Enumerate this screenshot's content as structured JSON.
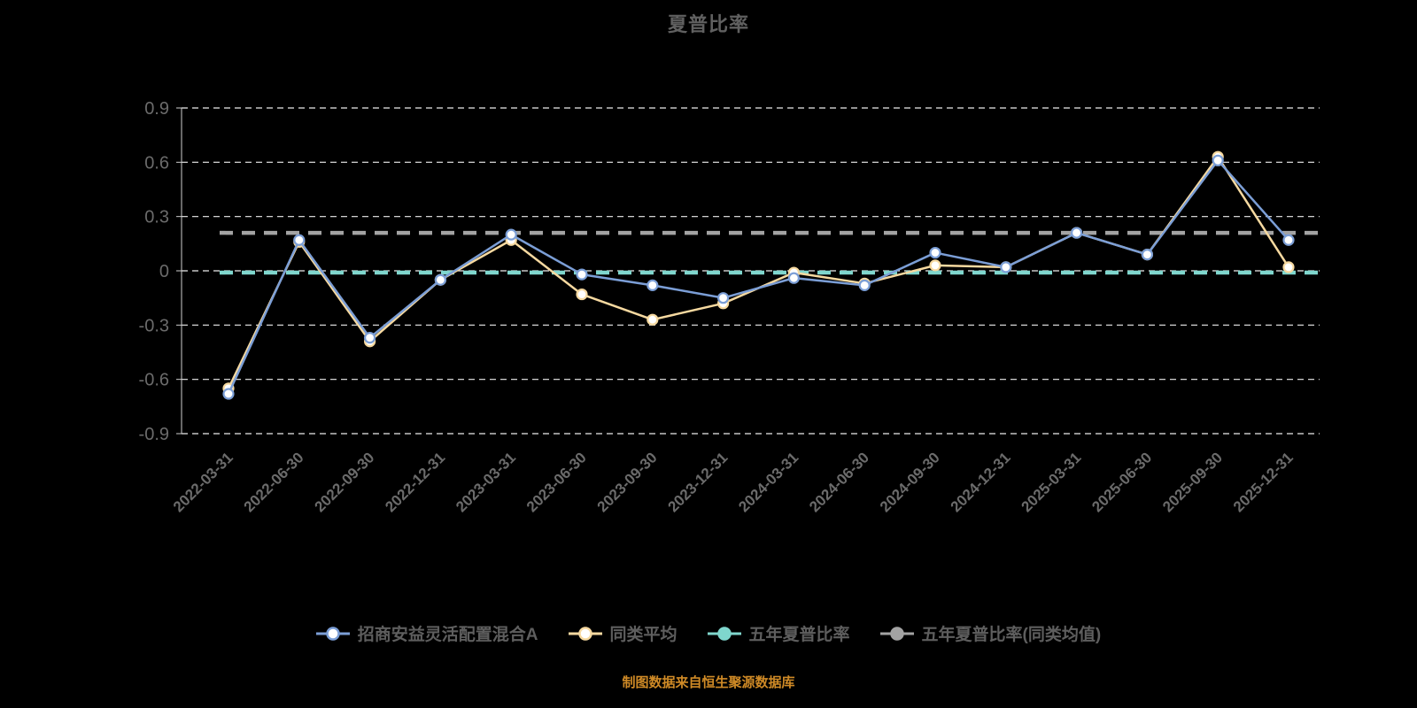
{
  "chart": {
    "title": "夏普比率",
    "source_note": "制图数据来自恒生聚源数据库"
  },
  "chart_data": {
    "type": "line",
    "title": "夏普比率",
    "categories": [
      "2022-03-31",
      "2022-06-30",
      "2022-09-30",
      "2022-12-31",
      "2023-03-31",
      "2023-06-30",
      "2023-09-30",
      "2023-12-31",
      "2024-03-31",
      "2024-06-30",
      "2024-09-30",
      "2024-12-31",
      "2025-03-31",
      "2025-06-30",
      "2025-09-30",
      "2025-12-31"
    ],
    "ylim": [
      -0.9,
      0.9
    ],
    "yticks": [
      0.9,
      0.6,
      0.3,
      0,
      -0.3,
      -0.6,
      -0.9
    ],
    "grid": "horizontal-dashed",
    "legend_position": "bottom",
    "series": [
      {
        "name": "招商安益灵活配置混合A",
        "color": "#7b9ed6",
        "marker": "hollow-circle",
        "values": [
          -0.68,
          0.17,
          -0.37,
          -0.05,
          0.2,
          -0.02,
          -0.08,
          -0.15,
          -0.04,
          -0.08,
          0.1,
          0.02,
          0.21,
          0.09,
          0.61,
          0.17
        ]
      },
      {
        "name": "同类平均",
        "color": "#f6d9a0",
        "marker": "hollow-circle",
        "values": [
          -0.65,
          0.16,
          -0.39,
          -0.05,
          0.17,
          -0.13,
          -0.27,
          -0.18,
          -0.01,
          -0.07,
          0.03,
          0.02,
          0.21,
          0.09,
          0.63,
          0.02
        ]
      }
    ],
    "reference_lines": [
      {
        "name": "五年夏普比率",
        "color": "#7fd6cd",
        "value": -0.01
      },
      {
        "name": "五年夏普比率(同类均值)",
        "color": "#a3a3a3",
        "value": 0.21
      }
    ],
    "colors": {
      "background": "#000000",
      "grid": "#ededed",
      "axis": "#cfcfcf",
      "text": "#6b6b6b",
      "title": "#606060",
      "source": "#cf8a26"
    }
  }
}
